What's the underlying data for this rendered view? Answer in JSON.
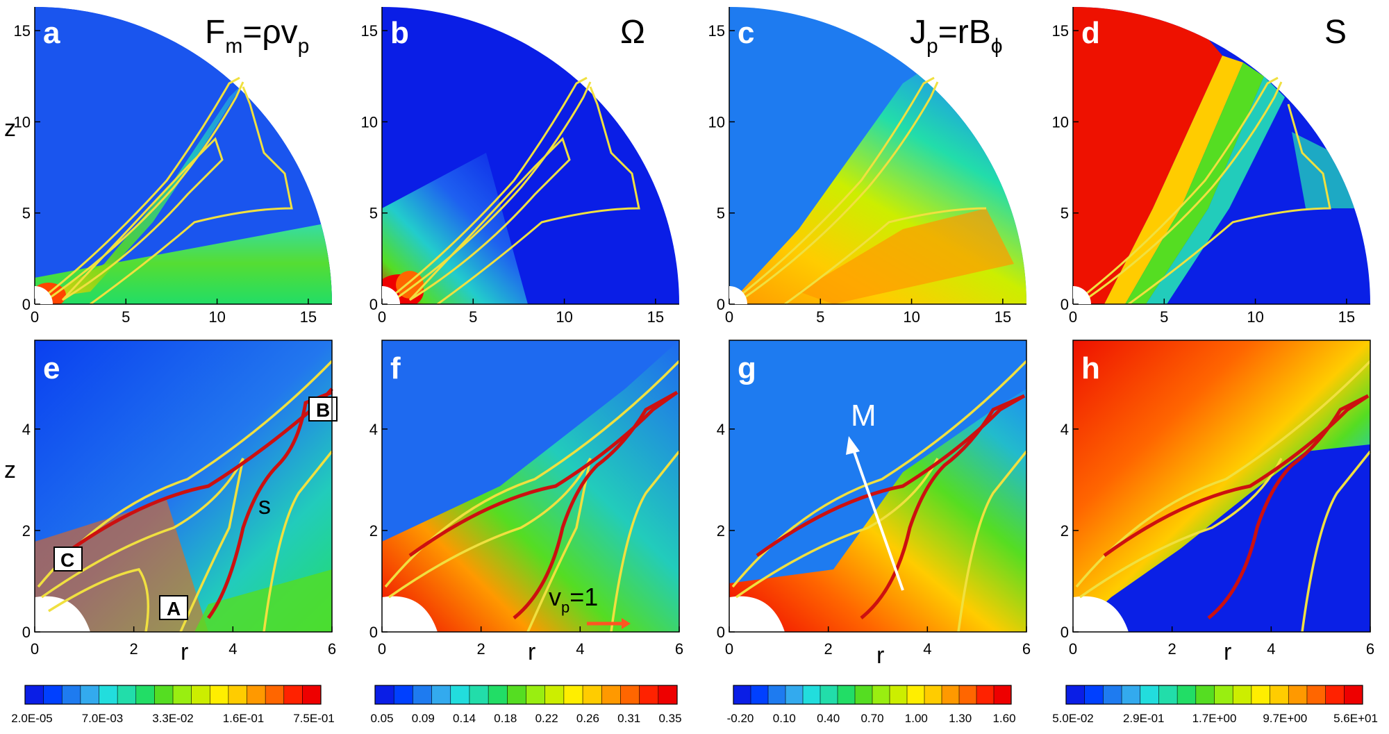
{
  "top_row": {
    "panels": [
      {
        "letter": "a",
        "title_main": "F",
        "title_sub1": "m",
        "title_rest": "=ρv",
        "title_sub2": "p"
      },
      {
        "letter": "b",
        "title_main": "Ω",
        "title_sub1": "",
        "title_rest": "",
        "title_sub2": ""
      },
      {
        "letter": "c",
        "title_main": "J",
        "title_sub1": "p",
        "title_rest": "=rB",
        "title_sub2": "ϕ"
      },
      {
        "letter": "d",
        "title_main": "S",
        "title_sub1": "",
        "title_rest": "",
        "title_sub2": ""
      }
    ],
    "x_ticks": [
      "0",
      "5",
      "10",
      "15"
    ],
    "y_ticks": [
      "0",
      "5",
      "10",
      "15"
    ],
    "y_label": "z"
  },
  "bottom_row": {
    "panels": [
      {
        "letter": "e"
      },
      {
        "letter": "f"
      },
      {
        "letter": "g"
      },
      {
        "letter": "h"
      }
    ],
    "x_ticks": [
      "0",
      "2",
      "4",
      "6"
    ],
    "y_ticks": [
      "0",
      "2",
      "4"
    ],
    "x_label": "r",
    "y_label": "z"
  },
  "annotations": {
    "B": "B",
    "C": "C",
    "A": "A",
    "s": "s",
    "vp_main": "v",
    "vp_sub": "p",
    "vp_rest": "=1",
    "M": "M"
  },
  "colorbars": [
    {
      "labels": [
        "2.0E-05",
        "7.0E-03",
        "3.3E-02",
        "1.6E-01",
        "7.5E-01"
      ]
    },
    {
      "labels": [
        "0.05",
        "0.09",
        "0.14",
        "0.18",
        "0.22",
        "0.26",
        "0.31",
        "0.35"
      ]
    },
    {
      "labels": [
        "-0.20",
        "0.10",
        "0.40",
        "0.70",
        "1.00",
        "1.30",
        "1.60"
      ]
    },
    {
      "labels": [
        "5.0E-02",
        "2.9E-01",
        "1.7E+00",
        "9.7E+00",
        "5.6E+01"
      ]
    }
  ],
  "colors": {
    "map": [
      "#0a1ee6",
      "#0040ff",
      "#1e7bf0",
      "#33aaee",
      "#22dddd",
      "#22ddaa",
      "#22dd66",
      "#55dd22",
      "#99ee11",
      "#ccee00",
      "#ffee00",
      "#ffcc00",
      "#ff9900",
      "#ff6600",
      "#ff2200",
      "#ee0000"
    ],
    "contour_yellow": "#f0e040",
    "contour_red": "#cc1010",
    "arrows": "#ff5522"
  }
}
